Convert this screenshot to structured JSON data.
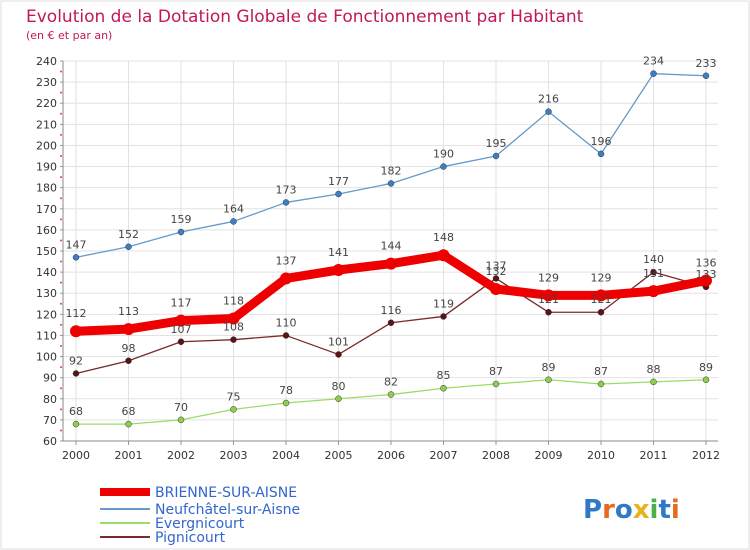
{
  "chart_data": {
    "type": "line",
    "title": "Evolution de la Dotation Globale de Fonctionnement par Habitant",
    "subtitle": "(en € et par an)",
    "xlabel": "",
    "ylabel": "",
    "ylim": [
      60,
      240
    ],
    "yticks": [
      60,
      70,
      80,
      90,
      100,
      110,
      120,
      130,
      140,
      150,
      160,
      170,
      180,
      190,
      200,
      210,
      220,
      230,
      240
    ],
    "categories": [
      "2000",
      "2001",
      "2002",
      "2003",
      "2004",
      "2005",
      "2006",
      "2007",
      "2008",
      "2009",
      "2010",
      "2011",
      "2012"
    ],
    "grid": true,
    "legend_position": "bottom-left",
    "series": [
      {
        "name": "BRIENNE-SUR-AISNE",
        "color": "#ee0000",
        "values": [
          112,
          113,
          117,
          118,
          137,
          141,
          144,
          148,
          132,
          129,
          129,
          131,
          136
        ]
      },
      {
        "name": "Neufchâtel-sur-Aisne",
        "color": "#6699cc",
        "values": [
          147,
          152,
          159,
          164,
          173,
          177,
          182,
          190,
          195,
          216,
          196,
          234,
          233
        ]
      },
      {
        "name": "Evergnicourt",
        "color": "#99dd66",
        "values": [
          68,
          68,
          70,
          75,
          78,
          80,
          82,
          85,
          87,
          89,
          87,
          88,
          89
        ]
      },
      {
        "name": "Pignicourt",
        "color": "#7a2a2a",
        "values": [
          92,
          98,
          107,
          108,
          110,
          101,
          116,
          119,
          137,
          121,
          121,
          140,
          133
        ]
      }
    ]
  },
  "logo": {
    "text": "Proxiti"
  }
}
